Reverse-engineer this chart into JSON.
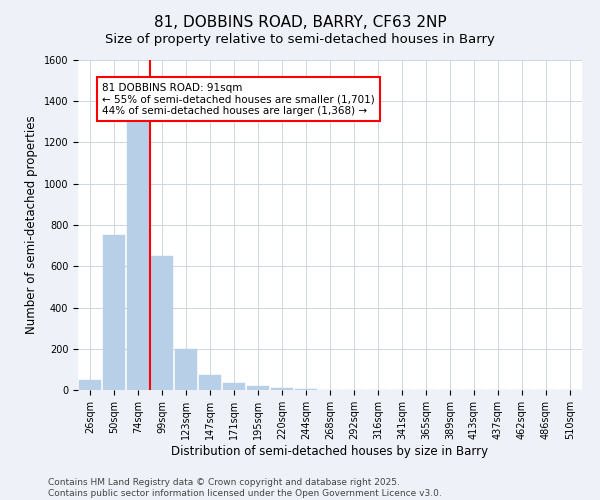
{
  "title": "81, DOBBINS ROAD, BARRY, CF63 2NP",
  "subtitle": "Size of property relative to semi-detached houses in Barry",
  "xlabel": "Distribution of semi-detached houses by size in Barry",
  "ylabel": "Number of semi-detached properties",
  "categories": [
    "26sqm",
    "50sqm",
    "74sqm",
    "99sqm",
    "123sqm",
    "147sqm",
    "171sqm",
    "195sqm",
    "220sqm",
    "244sqm",
    "268sqm",
    "292sqm",
    "316sqm",
    "341sqm",
    "365sqm",
    "389sqm",
    "413sqm",
    "437sqm",
    "462sqm",
    "486sqm",
    "510sqm"
  ],
  "values": [
    50,
    750,
    1300,
    650,
    200,
    75,
    35,
    20,
    10,
    5,
    0,
    0,
    0,
    0,
    0,
    0,
    0,
    0,
    0,
    0,
    0
  ],
  "bar_color": "#b8cfe8",
  "bar_edgecolor": "#b8cfe8",
  "vline_x": 2.5,
  "vline_color": "red",
  "ylim": [
    0,
    1600
  ],
  "yticks": [
    0,
    200,
    400,
    600,
    800,
    1000,
    1200,
    1400,
    1600
  ],
  "annotation_title": "81 DOBBINS ROAD: 91sqm",
  "annotation_line1": "← 55% of semi-detached houses are smaller (1,701)",
  "annotation_line2": "44% of semi-detached houses are larger (1,368) →",
  "annotation_box_color": "white",
  "annotation_box_edgecolor": "red",
  "footer_line1": "Contains HM Land Registry data © Crown copyright and database right 2025.",
  "footer_line2": "Contains public sector information licensed under the Open Government Licence v3.0.",
  "bg_color": "#eef2f8",
  "plot_bg_color": "white",
  "grid_color": "#c8d0dc",
  "title_fontsize": 11,
  "subtitle_fontsize": 9.5,
  "axis_label_fontsize": 8.5,
  "tick_fontsize": 7,
  "annotation_fontsize": 7.5,
  "footer_fontsize": 6.5
}
